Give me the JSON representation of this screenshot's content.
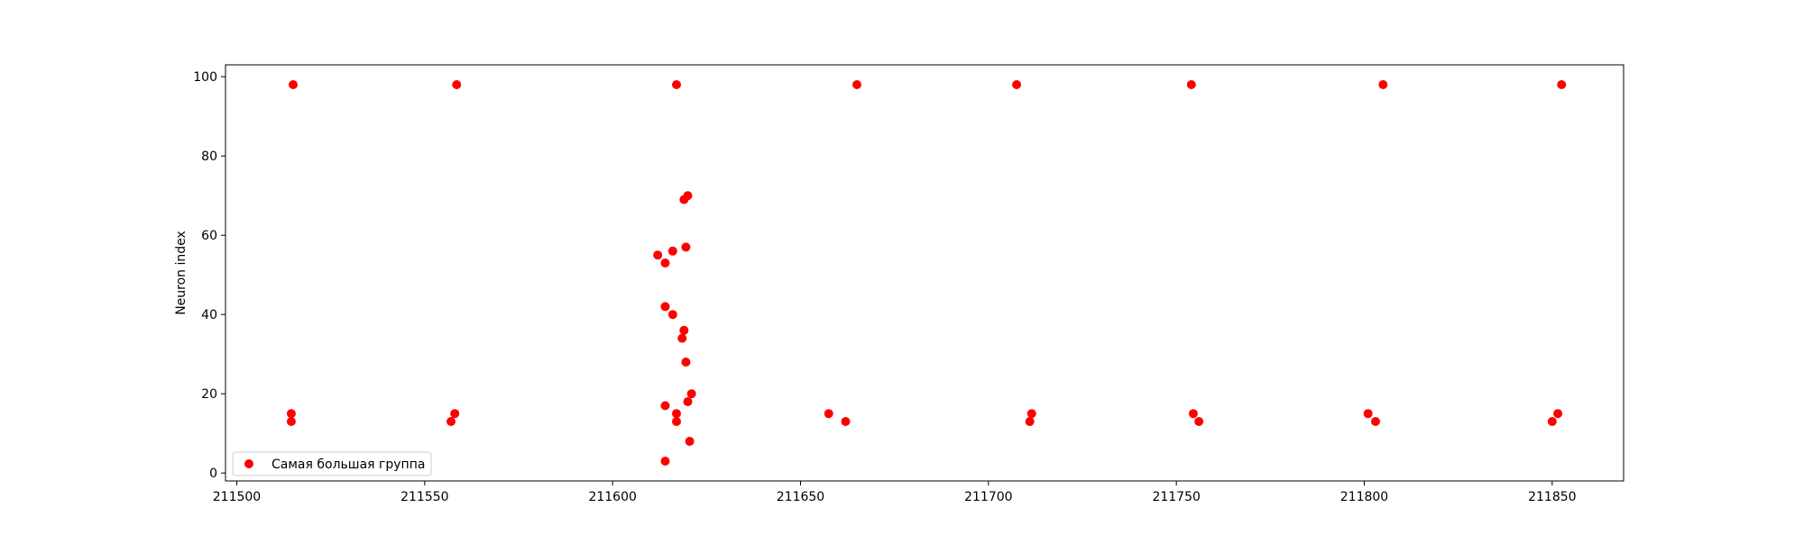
{
  "chart_data": {
    "type": "scatter",
    "title": "",
    "xlabel": "",
    "ylabel": "Neuron index",
    "xlim": [
      211497,
      211869
    ],
    "ylim": [
      -2,
      103
    ],
    "xticks": [
      "211500",
      "211550",
      "211600",
      "211650",
      "211700",
      "211750",
      "211800",
      "211850"
    ],
    "yticks": [
      "0",
      "20",
      "40",
      "60",
      "80",
      "100"
    ],
    "grid": false,
    "legend_position": "lower-left",
    "series": [
      {
        "name": "Самая большая группа",
        "color": "#ff0000",
        "points": [
          [
            211515,
            98
          ],
          [
            211514.5,
            15
          ],
          [
            211514.5,
            13
          ],
          [
            211558.5,
            98
          ],
          [
            211558,
            15
          ],
          [
            211557,
            13
          ],
          [
            211617,
            98
          ],
          [
            211612,
            55
          ],
          [
            211614,
            53
          ],
          [
            211616,
            56
          ],
          [
            211619.5,
            57
          ],
          [
            211619,
            69
          ],
          [
            211620,
            70
          ],
          [
            211614,
            42
          ],
          [
            211616,
            40
          ],
          [
            211619,
            36
          ],
          [
            211618.5,
            34
          ],
          [
            211619.5,
            28
          ],
          [
            211621,
            20
          ],
          [
            211620,
            18
          ],
          [
            211614,
            17
          ],
          [
            211617,
            15
          ],
          [
            211617,
            13
          ],
          [
            211620.5,
            8
          ],
          [
            211614,
            3
          ],
          [
            211665,
            98
          ],
          [
            211657.5,
            15
          ],
          [
            211662,
            13
          ],
          [
            211707.5,
            98
          ],
          [
            211711.5,
            15
          ],
          [
            211711,
            13
          ],
          [
            211754,
            98
          ],
          [
            211754.5,
            15
          ],
          [
            211756,
            13
          ],
          [
            211805,
            98
          ],
          [
            211801,
            15
          ],
          [
            211803,
            13
          ],
          [
            211852.5,
            98
          ],
          [
            211851.5,
            15
          ],
          [
            211850,
            13
          ]
        ]
      }
    ]
  }
}
